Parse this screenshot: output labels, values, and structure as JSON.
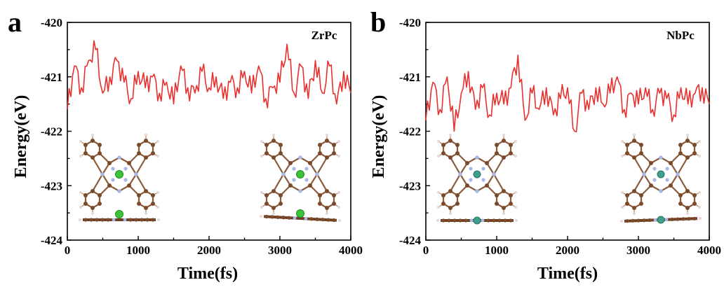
{
  "chart_data": [
    {
      "panel": "a",
      "type": "line",
      "series": [
        {
          "name": "ZrPc",
          "color": "#e8312f",
          "x": [
            0,
            100,
            200,
            300,
            400,
            500,
            600,
            700,
            800,
            900,
            1000,
            1100,
            1200,
            1300,
            1400,
            1500,
            1600,
            1700,
            1800,
            1900,
            2000,
            2100,
            2200,
            2300,
            2400,
            2500,
            2600,
            2700,
            2800,
            2900,
            3000,
            3100,
            3200,
            3300,
            3400,
            3500,
            3600,
            3700,
            3800,
            3900,
            4000
          ],
          "y": [
            -421.6,
            -420.8,
            -421.2,
            -420.7,
            -420.5,
            -421.3,
            -421.0,
            -420.7,
            -421.1,
            -421.4,
            -420.9,
            -421.2,
            -421.0,
            -421.3,
            -421.1,
            -421.5,
            -420.8,
            -421.2,
            -421.3,
            -420.9,
            -421.2,
            -421.0,
            -421.4,
            -421.1,
            -421.2,
            -420.9,
            -421.3,
            -420.8,
            -421.4,
            -421.2,
            -421.1,
            -420.4,
            -421.3,
            -420.8,
            -421.4,
            -420.7,
            -421.3,
            -420.8,
            -421.5,
            -420.9,
            -421.3
          ]
        }
      ],
      "xlim": [
        0,
        4000
      ],
      "ylim": [
        -424,
        -420
      ],
      "xticks": [
        0,
        1000,
        2000,
        3000,
        4000
      ],
      "yticks": [
        -420,
        -421,
        -422,
        -423,
        -424
      ],
      "xlabel": "Time(fs)",
      "ylabel": "Energy(eV)"
    },
    {
      "panel": "b",
      "type": "line",
      "series": [
        {
          "name": "NbPc",
          "color": "#e8312f",
          "x": [
            0,
            100,
            200,
            300,
            400,
            500,
            600,
            700,
            800,
            900,
            1000,
            1100,
            1200,
            1300,
            1400,
            1500,
            1600,
            1700,
            1800,
            1900,
            2000,
            2100,
            2200,
            2300,
            2400,
            2500,
            2600,
            2700,
            2800,
            2900,
            3000,
            3100,
            3200,
            3300,
            3400,
            3500,
            3600,
            3700,
            3800,
            3900,
            4000
          ],
          "y": [
            -421.8,
            -421.1,
            -421.6,
            -421.0,
            -422.0,
            -421.3,
            -420.9,
            -421.6,
            -421.2,
            -421.7,
            -421.3,
            -421.5,
            -421.2,
            -420.6,
            -421.8,
            -421.3,
            -421.6,
            -421.2,
            -421.7,
            -421.4,
            -421.2,
            -422.0,
            -421.3,
            -421.6,
            -421.2,
            -421.5,
            -421.3,
            -421.0,
            -421.6,
            -421.3,
            -421.5,
            -421.2,
            -421.6,
            -421.3,
            -421.4,
            -421.7,
            -421.2,
            -421.5,
            -421.3,
            -421.2,
            -421.5
          ]
        }
      ],
      "xlim": [
        0,
        4000
      ],
      "ylim": [
        -424,
        -420
      ],
      "xticks": [
        0,
        1000,
        2000,
        3000,
        4000
      ],
      "yticks": [
        -420,
        -421,
        -422,
        -423,
        -424
      ],
      "xlabel": "Time(fs)",
      "ylabel": "Energy(eV)"
    }
  ],
  "insets": [
    {
      "panel": "a",
      "metal_color": "#3cc23c",
      "metal_outline": "#1e8e1e"
    },
    {
      "panel": "b",
      "metal_color": "#3f9f8c",
      "metal_outline": "#2a7466"
    }
  ]
}
